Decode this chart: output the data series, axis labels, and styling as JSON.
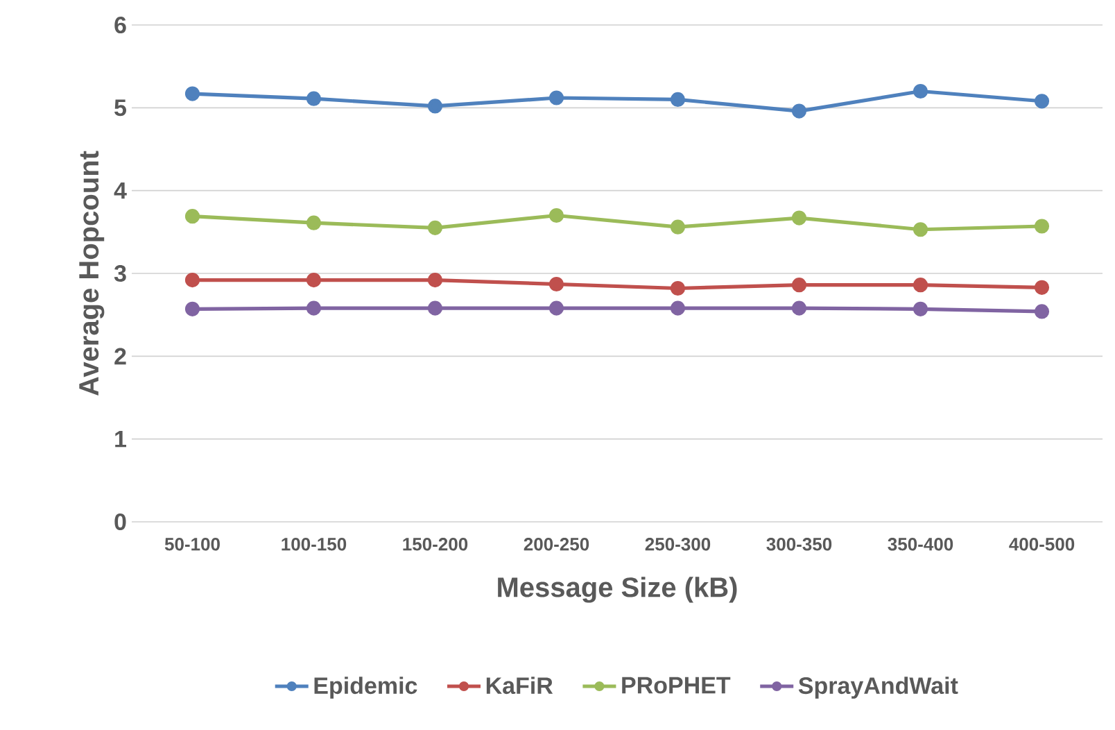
{
  "chart_data": {
    "type": "line",
    "xlabel": "Message Size (kB)",
    "ylabel": "Average Hopcount",
    "categories": [
      "50-100",
      "100-150",
      "150-200",
      "200-250",
      "250-300",
      "300-350",
      "350-400",
      "400-500"
    ],
    "series": [
      {
        "name": "Epidemic",
        "color": "#4f81bd",
        "values": [
          5.17,
          5.11,
          5.02,
          5.12,
          5.1,
          4.96,
          5.2,
          5.08
        ]
      },
      {
        "name": "KaFiR",
        "color": "#c0504d",
        "values": [
          2.92,
          2.92,
          2.92,
          2.87,
          2.82,
          2.86,
          2.86,
          2.83
        ]
      },
      {
        "name": "PRoPHET",
        "color": "#9bbb59",
        "values": [
          3.69,
          3.61,
          3.55,
          3.7,
          3.56,
          3.67,
          3.53,
          3.57
        ]
      },
      {
        "name": "SprayAndWait",
        "color": "#8064a2",
        "values": [
          2.57,
          2.58,
          2.58,
          2.58,
          2.58,
          2.58,
          2.57,
          2.54
        ]
      }
    ],
    "ylim": [
      0,
      6
    ],
    "yticks": [
      0,
      1,
      2,
      3,
      4,
      5,
      6
    ],
    "grid": "y",
    "legend": "bottom",
    "marker": "circle",
    "line_style": "solid"
  }
}
